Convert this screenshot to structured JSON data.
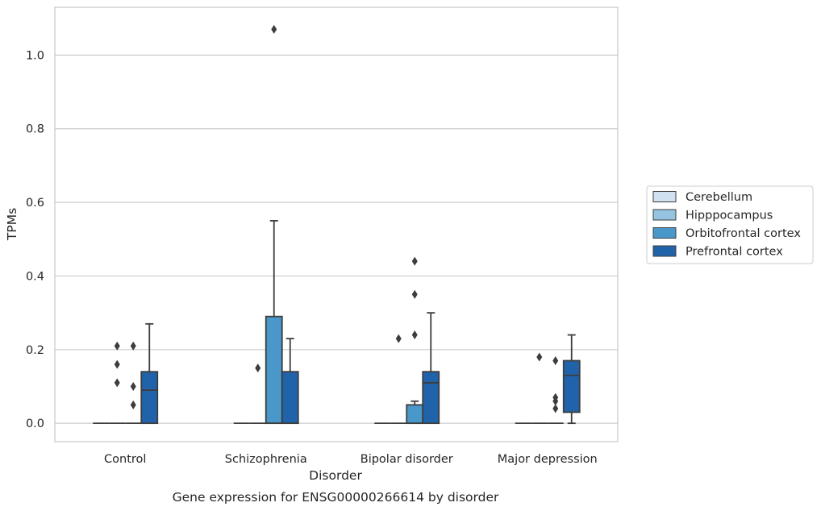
{
  "chart_data": {
    "type": "box",
    "title": "",
    "caption": "Gene expression for ENSG00000266614 by disorder",
    "xlabel": "Disorder",
    "ylabel": "TPMs",
    "ylim": [
      -0.05,
      1.13
    ],
    "yticks": [
      0.0,
      0.2,
      0.4,
      0.6,
      0.8,
      1.0
    ],
    "yticks_text": [
      "0.0",
      "0.2",
      "0.4",
      "0.6",
      "0.8",
      "1.0"
    ],
    "grid": "horizontal",
    "legend_placement": "right",
    "categories": [
      "Control",
      "Schizophrenia",
      "Bipolar disorder",
      "Major depression"
    ],
    "series": [
      {
        "name": "Cerebellum",
        "color": "#d0e1f2",
        "boxes": [
          {
            "q1": 0,
            "median": 0,
            "q3": 0,
            "whisker_low": 0,
            "whisker_high": 0,
            "outliers": []
          },
          {
            "q1": 0,
            "median": 0,
            "q3": 0,
            "whisker_low": 0,
            "whisker_high": 0,
            "outliers": []
          },
          {
            "q1": 0,
            "median": 0,
            "q3": 0,
            "whisker_low": 0,
            "whisker_high": 0,
            "outliers": []
          },
          {
            "q1": 0,
            "median": 0,
            "q3": 0,
            "whisker_low": 0,
            "whisker_high": 0,
            "outliers": []
          }
        ]
      },
      {
        "name": "Hipppocampus",
        "color": "#94c4df",
        "boxes": [
          {
            "q1": 0,
            "median": 0,
            "q3": 0,
            "whisker_low": 0,
            "whisker_high": 0,
            "outliers": [
              0.11,
              0.16,
              0.21
            ]
          },
          {
            "q1": 0,
            "median": 0,
            "q3": 0,
            "whisker_low": 0,
            "whisker_high": 0,
            "outliers": [
              0.15
            ]
          },
          {
            "q1": 0,
            "median": 0,
            "q3": 0,
            "whisker_low": 0,
            "whisker_high": 0,
            "outliers": [
              0.23
            ]
          },
          {
            "q1": 0,
            "median": 0,
            "q3": 0,
            "whisker_low": 0,
            "whisker_high": 0,
            "outliers": [
              0.18
            ]
          }
        ]
      },
      {
        "name": "Orbitofrontal cortex",
        "color": "#4a98c9",
        "boxes": [
          {
            "q1": 0,
            "median": 0,
            "q3": 0,
            "whisker_low": 0,
            "whisker_high": 0,
            "outliers": [
              0.05,
              0.1,
              0.21
            ]
          },
          {
            "q1": 0,
            "median": 0,
            "q3": 0.29,
            "whisker_low": 0,
            "whisker_high": 0.55,
            "outliers": [
              1.07
            ]
          },
          {
            "q1": 0,
            "median": 0,
            "q3": 0.05,
            "whisker_low": 0,
            "whisker_high": 0.06,
            "outliers": [
              0.24,
              0.35,
              0.44
            ]
          },
          {
            "q1": 0,
            "median": 0,
            "q3": 0,
            "whisker_low": 0,
            "whisker_high": 0,
            "outliers": [
              0.04,
              0.06,
              0.07,
              0.17
            ]
          }
        ]
      },
      {
        "name": "Prefrontal cortex",
        "color": "#2163aa",
        "boxes": [
          {
            "q1": 0,
            "median": 0.09,
            "q3": 0.14,
            "whisker_low": 0,
            "whisker_high": 0.27,
            "outliers": []
          },
          {
            "q1": 0,
            "median": 0,
            "q3": 0.14,
            "whisker_low": 0,
            "whisker_high": 0.23,
            "outliers": []
          },
          {
            "q1": 0,
            "median": 0.11,
            "q3": 0.14,
            "whisker_low": 0,
            "whisker_high": 0.3,
            "outliers": []
          },
          {
            "q1": 0.03,
            "median": 0.13,
            "q3": 0.17,
            "whisker_low": 0,
            "whisker_high": 0.24,
            "outliers": []
          }
        ]
      }
    ]
  }
}
